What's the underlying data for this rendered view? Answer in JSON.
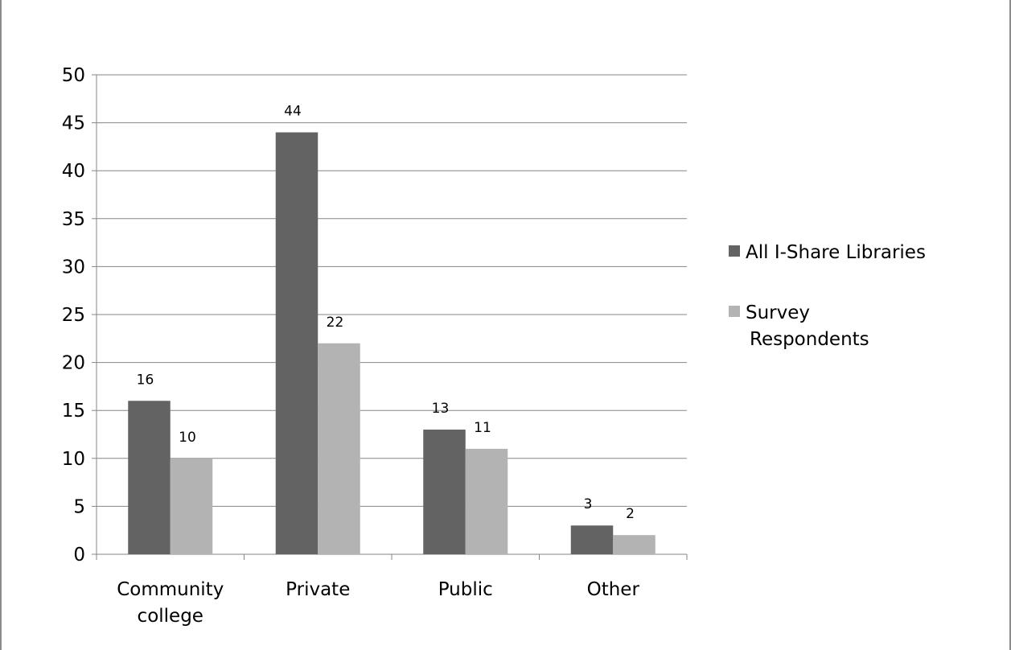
{
  "chart_data": {
    "type": "bar",
    "title": "",
    "xlabel": "",
    "ylabel": "",
    "categories": [
      [
        "Community",
        "college"
      ],
      [
        "Private"
      ],
      [
        "Public"
      ],
      [
        "Other"
      ]
    ],
    "series": [
      {
        "name": "All I-Share Libraries",
        "values": [
          16,
          44,
          13,
          3
        ],
        "color": "#636363"
      },
      {
        "name": "Survey Respondents",
        "values": [
          10,
          22,
          11,
          2
        ],
        "color": "#b3b3b3"
      }
    ],
    "ylim": [
      0,
      50
    ],
    "yticks": [
      0,
      5,
      10,
      15,
      20,
      25,
      30,
      35,
      40,
      45,
      50
    ],
    "grid": true,
    "data_labels": true,
    "legend_position": "right",
    "legend_labels": [
      [
        "All I-Share Libraries"
      ],
      [
        "Survey",
        "Respondents"
      ]
    ],
    "gridline_color": "#868686",
    "axis_color": "#868686"
  }
}
